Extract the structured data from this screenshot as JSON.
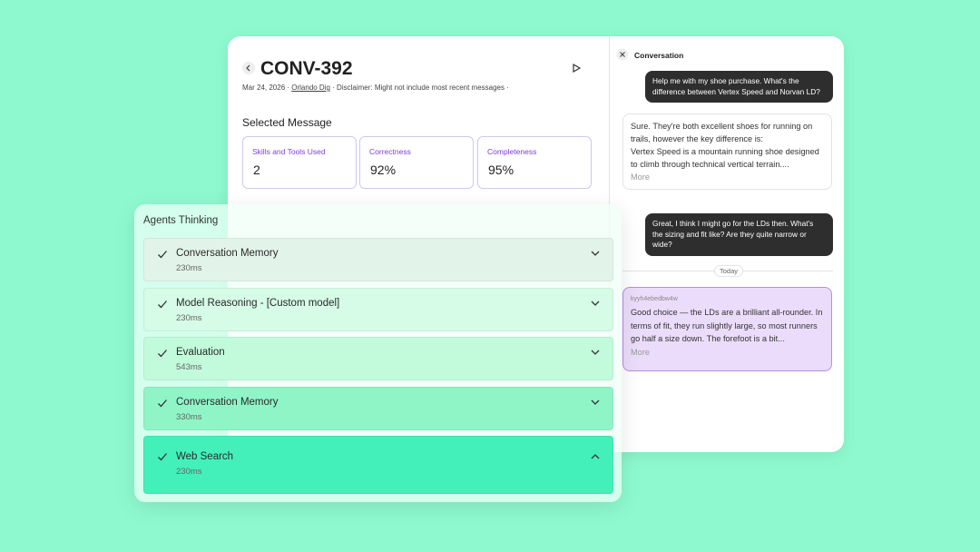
{
  "header": {
    "title": "CONV-392",
    "date": "Mar 24, 2026",
    "user": "Orlando Dig",
    "disclaimer": "Disclaimer: Might not include most recent messages"
  },
  "selected": {
    "title": "Selected Message",
    "metrics": [
      {
        "label": "Skills and Tools Used",
        "value": "2"
      },
      {
        "label": "Correctness",
        "value": "92%"
      },
      {
        "label": "Completeness",
        "value": "95%"
      }
    ]
  },
  "thinking": {
    "title": "Agents Thinking",
    "steps": [
      {
        "name": "Conversation Memory",
        "time": "230ms"
      },
      {
        "name": "Model Reasoning - [Custom model]",
        "time": "230ms"
      },
      {
        "name": "Evaluation",
        "time": "543ms"
      },
      {
        "name": "Conversation Memory",
        "time": "330ms"
      },
      {
        "name": "Web Search",
        "time": "230ms"
      }
    ]
  },
  "conversation": {
    "title": "Conversation",
    "user_1": "Help me with my shoe purchase. What's the difference between Vertex Speed and Norvan LD?",
    "bot_1": {
      "lines": [
        "Sure. They're both excellent shoes for running on trails, however the key difference is:",
        "Vertex Speed is a mountain running shoe designed to climb through technical vertical terrain...."
      ],
      "more": "More"
    },
    "user_2": "Great, I think I might go for the LDs then. What's the sizing and fit like? Are they quite narrow or wide?",
    "divider": "Today",
    "bot_2": {
      "id": "kyyh4ebedbw4w",
      "text": "Good choice — the LDs are a brilliant all-rounder. In terms of fit, they run slightly large, so most runners go half a size down. The forefoot is a bit...",
      "more": "More"
    }
  }
}
